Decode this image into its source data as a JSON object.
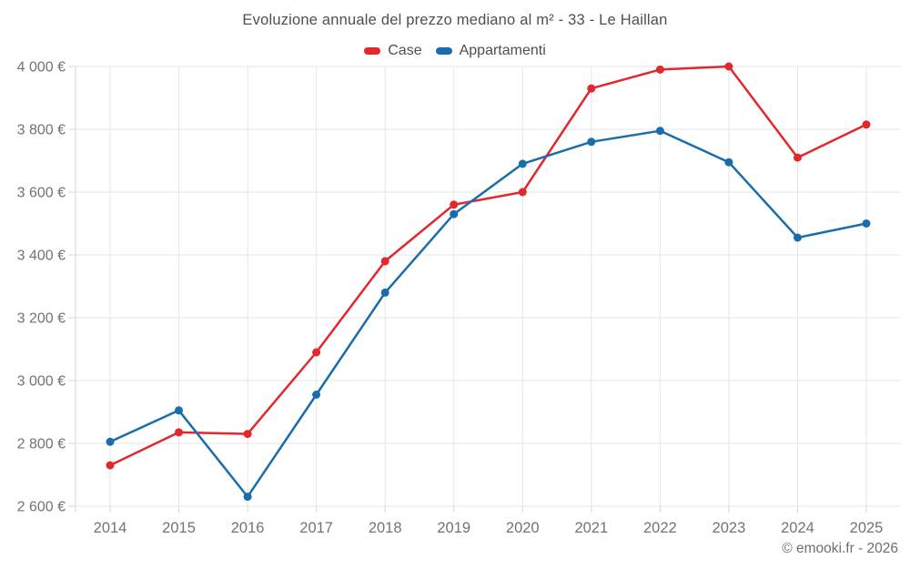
{
  "title": "Evoluzione annuale del prezzo mediano al m² - 33 - Le Haillan",
  "footer": "© emooki.fr - 2026",
  "colors": {
    "grid": "#e6e6e6",
    "axis": "#d6d6d6",
    "title_text": "#4f4f4f",
    "axis_text": "#737373",
    "case_red": "#e0282d",
    "appartamenti_blue": "#1a6dab"
  },
  "chart_data": {
    "type": "line",
    "title": "Evoluzione annuale del prezzo mediano al m² - 33 - Le Haillan",
    "x": [
      2014,
      2015,
      2016,
      2017,
      2018,
      2019,
      2020,
      2021,
      2022,
      2023,
      2024,
      2025
    ],
    "series": [
      {
        "name": "Case",
        "color": "#e0282d",
        "values": [
          2730,
          2835,
          2830,
          3090,
          3380,
          3560,
          3600,
          3930,
          3990,
          4000,
          3710,
          3815
        ]
      },
      {
        "name": "Appartamenti",
        "color": "#1a6dab",
        "values": [
          2805,
          2905,
          2630,
          2955,
          3280,
          3530,
          3690,
          3760,
          3795,
          3695,
          3455,
          3500
        ]
      }
    ],
    "xlabel": "",
    "ylabel": "",
    "ylim": [
      2600,
      4000
    ],
    "ytick_step": 200,
    "ytick_labels": [
      "2 600 €",
      "2 800 €",
      "3 000 €",
      "3 200 €",
      "3 400 €",
      "3 600 €",
      "3 800 €",
      "4 000 €"
    ],
    "grid": true,
    "legend_position": "top"
  }
}
